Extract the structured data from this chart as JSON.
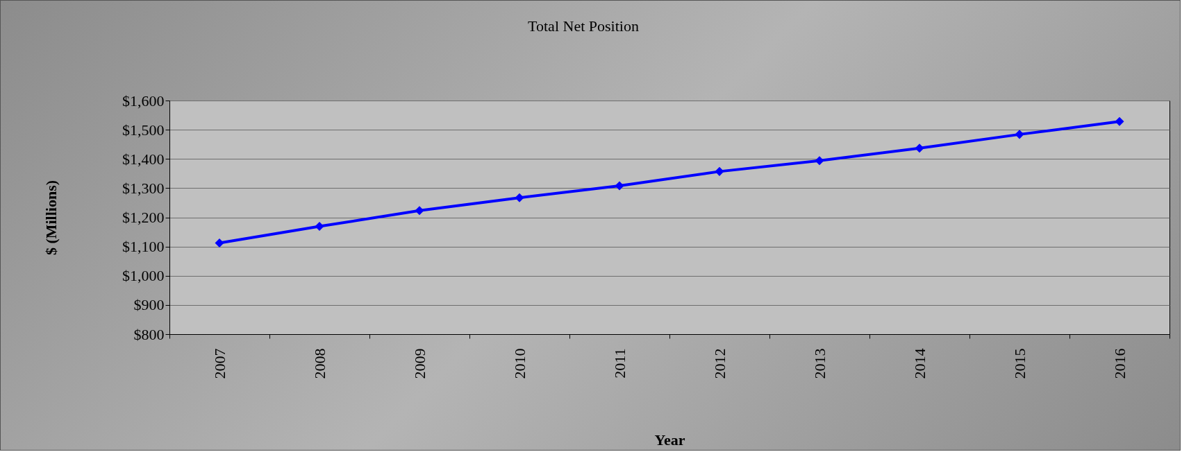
{
  "chart_data": {
    "type": "line",
    "title": "Total Net Position",
    "xlabel": "Year",
    "ylabel": "$ (Millions)",
    "categories": [
      "2007",
      "2008",
      "2009",
      "2010",
      "2011",
      "2012",
      "2013",
      "2014",
      "2015",
      "2016"
    ],
    "series": [
      {
        "color": "#0000ff",
        "values": [
          1112,
          1169,
          1223,
          1267,
          1308,
          1357,
          1394,
          1437,
          1484,
          1528
        ]
      }
    ],
    "ylim": [
      800,
      1600
    ],
    "yticks": [
      {
        "value": 800,
        "label": "$800"
      },
      {
        "value": 900,
        "label": "$900"
      },
      {
        "value": 1000,
        "label": "$1,000"
      },
      {
        "value": 1100,
        "label": "$1,100"
      },
      {
        "value": 1200,
        "label": "$1,200"
      },
      {
        "value": 1300,
        "label": "$1,300"
      },
      {
        "value": 1400,
        "label": "$1,400"
      },
      {
        "value": 1500,
        "label": "$1,500"
      },
      {
        "value": 1600,
        "label": "$1,600"
      }
    ],
    "grid": "y",
    "marker": "diamond",
    "line_style": "solid",
    "legend": false
  }
}
